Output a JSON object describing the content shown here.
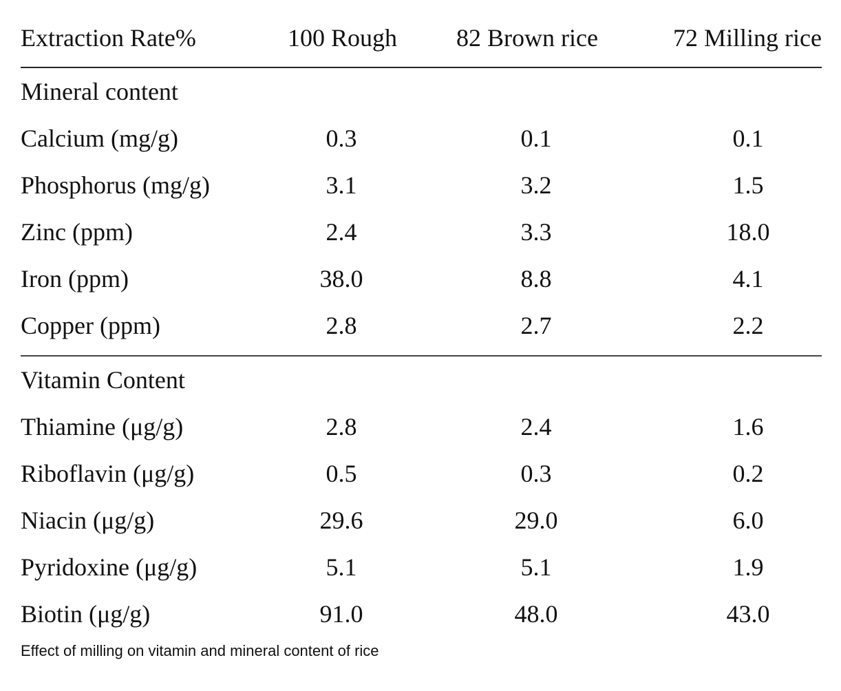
{
  "table": {
    "headers": [
      "Extraction Rate%",
      "100 Rough",
      "82 Brown rice",
      "72 Milling rice"
    ],
    "sections": [
      {
        "title": "Mineral content",
        "rows": [
          [
            "Calcium (mg/g)",
            "0.3",
            "0.1",
            "0.1"
          ],
          [
            "Phosphorus (mg/g)",
            "3.1",
            "3.2",
            "1.5"
          ],
          [
            "Zinc (ppm)",
            "2.4",
            "3.3",
            "18.0"
          ],
          [
            "Iron (ppm)",
            "38.0",
            "8.8",
            "4.1"
          ],
          [
            "Copper (ppm)",
            "2.8",
            "2.7",
            "2.2"
          ]
        ]
      },
      {
        "title": "Vitamin Content",
        "rows": [
          [
            "Thiamine (μg/g)",
            "2.8",
            "2.4",
            "1.6"
          ],
          [
            "Riboflavin (μg/g)",
            "0.5",
            "0.3",
            "0.2"
          ],
          [
            "Niacin (μg/g)",
            "29.6",
            "29.0",
            "6.0"
          ],
          [
            "Pyridoxine (μg/g)",
            "5.1",
            "5.1",
            "1.9"
          ],
          [
            "Biotin (μg/g)",
            "91.0",
            "48.0",
            "43.0"
          ]
        ]
      }
    ]
  },
  "caption": "Effect of milling on vitamin and mineral content of rice"
}
